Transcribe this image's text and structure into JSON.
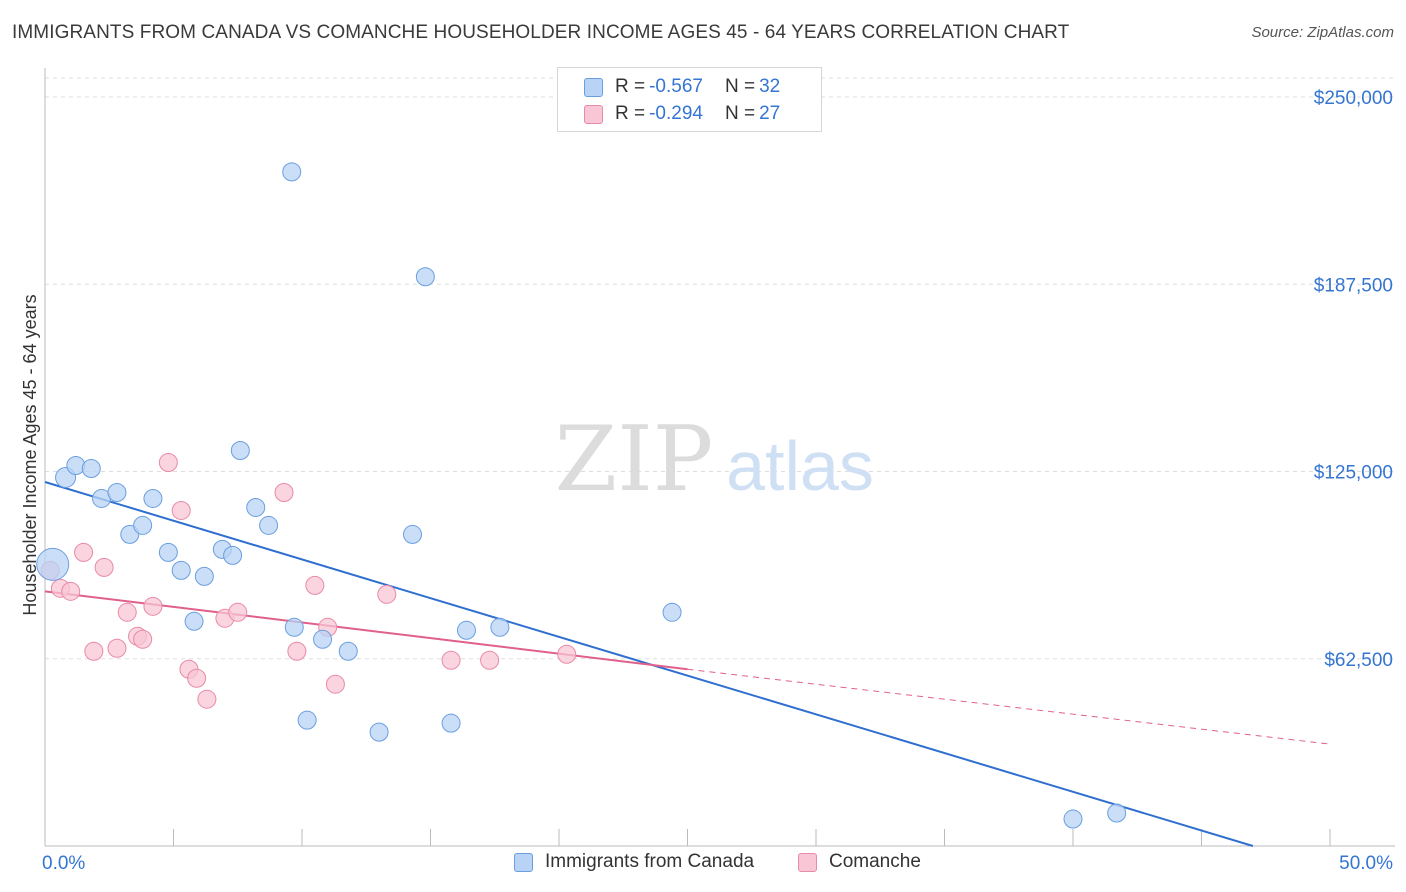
{
  "title": "IMMIGRANTS FROM CANADA VS COMANCHE HOUSEHOLDER INCOME AGES 45 - 64 YEARS CORRELATION CHART",
  "source": "Source: ZipAtlas.com",
  "watermark": {
    "zip": "ZIP",
    "atlas": "atlas"
  },
  "colors": {
    "blue_fill": "#b8d3f5",
    "blue_stroke": "#6a9fdf",
    "blue_line": "#2f6fcf",
    "pink_fill": "#f8c6d4",
    "pink_stroke": "#e98aa8",
    "pink_line": "#e0608a",
    "tick_text": "#3575d2",
    "grid": "#dddddd"
  },
  "legend": {
    "rows": [
      {
        "r_label": "R = ",
        "r_value": "-0.567",
        "n_label": "N = ",
        "n_value": "32",
        "color": "blue"
      },
      {
        "r_label": "R = ",
        "r_value": "-0.294",
        "n_label": "N = ",
        "n_value": "27",
        "color": "pink"
      }
    ]
  },
  "chart_data": {
    "type": "scatter",
    "xlabel": "",
    "ylabel": "Householder Income Ages 45 - 64 years",
    "xlim": [
      0,
      50
    ],
    "ylim": [
      0,
      260000
    ],
    "x_tick_labels": [
      "0.0%",
      "50.0%"
    ],
    "y_ticks": [
      62500,
      125000,
      187500,
      250000
    ],
    "y_tick_labels": [
      "$62,500",
      "$125,000",
      "$187,500",
      "$250,000"
    ],
    "grid": true,
    "legend_position": "bottom",
    "series": [
      {
        "name": "Immigrants from Canada",
        "color": "blue",
        "points": [
          [
            0.3,
            94000,
            16
          ],
          [
            0.8,
            123000,
            10
          ],
          [
            1.2,
            127000,
            9
          ],
          [
            1.8,
            126000,
            9
          ],
          [
            2.2,
            116000,
            9
          ],
          [
            2.8,
            118000,
            9
          ],
          [
            3.3,
            104000,
            9
          ],
          [
            3.8,
            107000,
            9
          ],
          [
            4.2,
            116000,
            9
          ],
          [
            4.8,
            98000,
            9
          ],
          [
            5.3,
            92000,
            9
          ],
          [
            5.8,
            75000,
            9
          ],
          [
            6.2,
            90000,
            9
          ],
          [
            6.9,
            99000,
            9
          ],
          [
            7.3,
            97000,
            9
          ],
          [
            7.6,
            132000,
            9
          ],
          [
            8.2,
            113000,
            9
          ],
          [
            8.7,
            107000,
            9
          ],
          [
            9.6,
            225000,
            9
          ],
          [
            9.7,
            73000,
            9
          ],
          [
            10.2,
            42000,
            9
          ],
          [
            10.8,
            69000,
            9
          ],
          [
            11.8,
            65000,
            9
          ],
          [
            13.0,
            38000,
            9
          ],
          [
            14.3,
            104000,
            9
          ],
          [
            14.8,
            190000,
            9
          ],
          [
            15.8,
            41000,
            9
          ],
          [
            16.4,
            72000,
            9
          ],
          [
            17.7,
            73000,
            9
          ],
          [
            24.4,
            78000,
            9
          ],
          [
            40.0,
            9000,
            9
          ],
          [
            41.7,
            11000,
            9
          ]
        ],
        "trend": {
          "x0": 0,
          "y0": 121500,
          "x1": 47,
          "y1": 0
        }
      },
      {
        "name": "Comanche",
        "color": "pink",
        "points": [
          [
            0.2,
            92000,
            9
          ],
          [
            0.6,
            86000,
            9
          ],
          [
            1.0,
            85000,
            9
          ],
          [
            1.5,
            98000,
            9
          ],
          [
            1.9,
            65000,
            9
          ],
          [
            2.3,
            93000,
            9
          ],
          [
            2.8,
            66000,
            9
          ],
          [
            3.2,
            78000,
            9
          ],
          [
            3.6,
            70000,
            9
          ],
          [
            3.8,
            69000,
            9
          ],
          [
            4.2,
            80000,
            9
          ],
          [
            4.8,
            128000,
            9
          ],
          [
            5.3,
            112000,
            9
          ],
          [
            5.6,
            59000,
            9
          ],
          [
            5.9,
            56000,
            9
          ],
          [
            6.3,
            49000,
            9
          ],
          [
            7.0,
            76000,
            9
          ],
          [
            7.5,
            78000,
            9
          ],
          [
            9.3,
            118000,
            9
          ],
          [
            9.8,
            65000,
            9
          ],
          [
            10.5,
            87000,
            9
          ],
          [
            11.0,
            73000,
            9
          ],
          [
            11.3,
            54000,
            9
          ],
          [
            13.3,
            84000,
            9
          ],
          [
            15.8,
            62000,
            9
          ],
          [
            17.3,
            62000,
            9
          ],
          [
            20.3,
            64000,
            9
          ]
        ],
        "trend": {
          "x0": 0,
          "y0": 85000,
          "x1": 25,
          "y1": 59000
        },
        "trend_extension": {
          "x0": 25,
          "y0": 59000,
          "x1": 50,
          "y1": 34000
        }
      }
    ]
  },
  "bottom_legend": [
    {
      "label": "Immigrants from Canada",
      "color": "blue"
    },
    {
      "label": "Comanche",
      "color": "pink"
    }
  ]
}
